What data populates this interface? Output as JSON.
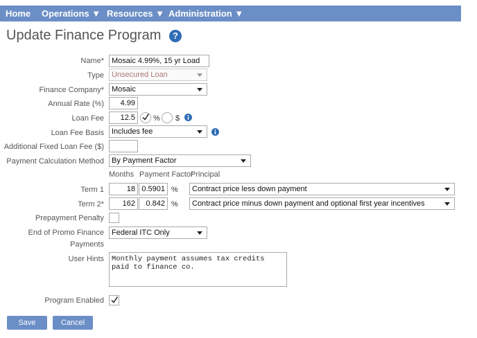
{
  "nav": [
    "Home",
    "Operations ▼",
    "Resources ▼",
    "Administration ▼"
  ],
  "header": {
    "title": "Update Finance Program",
    "help": "?"
  },
  "form": {
    "name": {
      "label": "Name*",
      "value": "Mosaic 4.99%, 15 yr Load"
    },
    "type": {
      "label": "Type",
      "value": "Unsecured Loan"
    },
    "finance_company": {
      "label": "Finance Company*",
      "value": "Mosaic"
    },
    "annual_rate": {
      "label": "Annual Rate (%)",
      "value": 4.99
    },
    "loan_fee": {
      "label": "Loan Fee",
      "value": 12.5,
      "percent": "%",
      "dollar": "$",
      "percent_checked": true
    },
    "loan_fee_basis": {
      "label": "Loan Fee Basis",
      "value": "Includes fee"
    },
    "additional_fixed_loan_fee": {
      "label": "Additional Fixed Loan Fee ($)"
    },
    "payment_calculation_method": {
      "label": "Payment Calculation Method",
      "value": "By Payment Factor"
    },
    "terms": {
      "headers": [
        "Months",
        "Payment Factor",
        "Principal"
      ],
      "rows": [
        {
          "label": "Term 1",
          "months": 18,
          "factor": 0.5901,
          "unit": "%",
          "principal": "Contract price less down payment"
        },
        {
          "label": "Term 2*",
          "months": 162,
          "factor": 0.842,
          "unit": "%",
          "principal": "Contract price minus down payment and optional first year incentives"
        }
      ]
    },
    "prepayment_penalty": {
      "label": "Prepayment Penalty",
      "checked": false
    },
    "end_of_promo": {
      "label": [
        "End of Promo Finance",
        "Payments"
      ],
      "value": "Federal ITC Only"
    },
    "user_hints": {
      "label": "User Hints",
      "value": "Monthly payment assumes tax credits paid to finance co."
    },
    "program_enabled": {
      "label": "Program Enabled",
      "checked": true
    }
  },
  "buttons": [
    "Save",
    "Cancel"
  ]
}
